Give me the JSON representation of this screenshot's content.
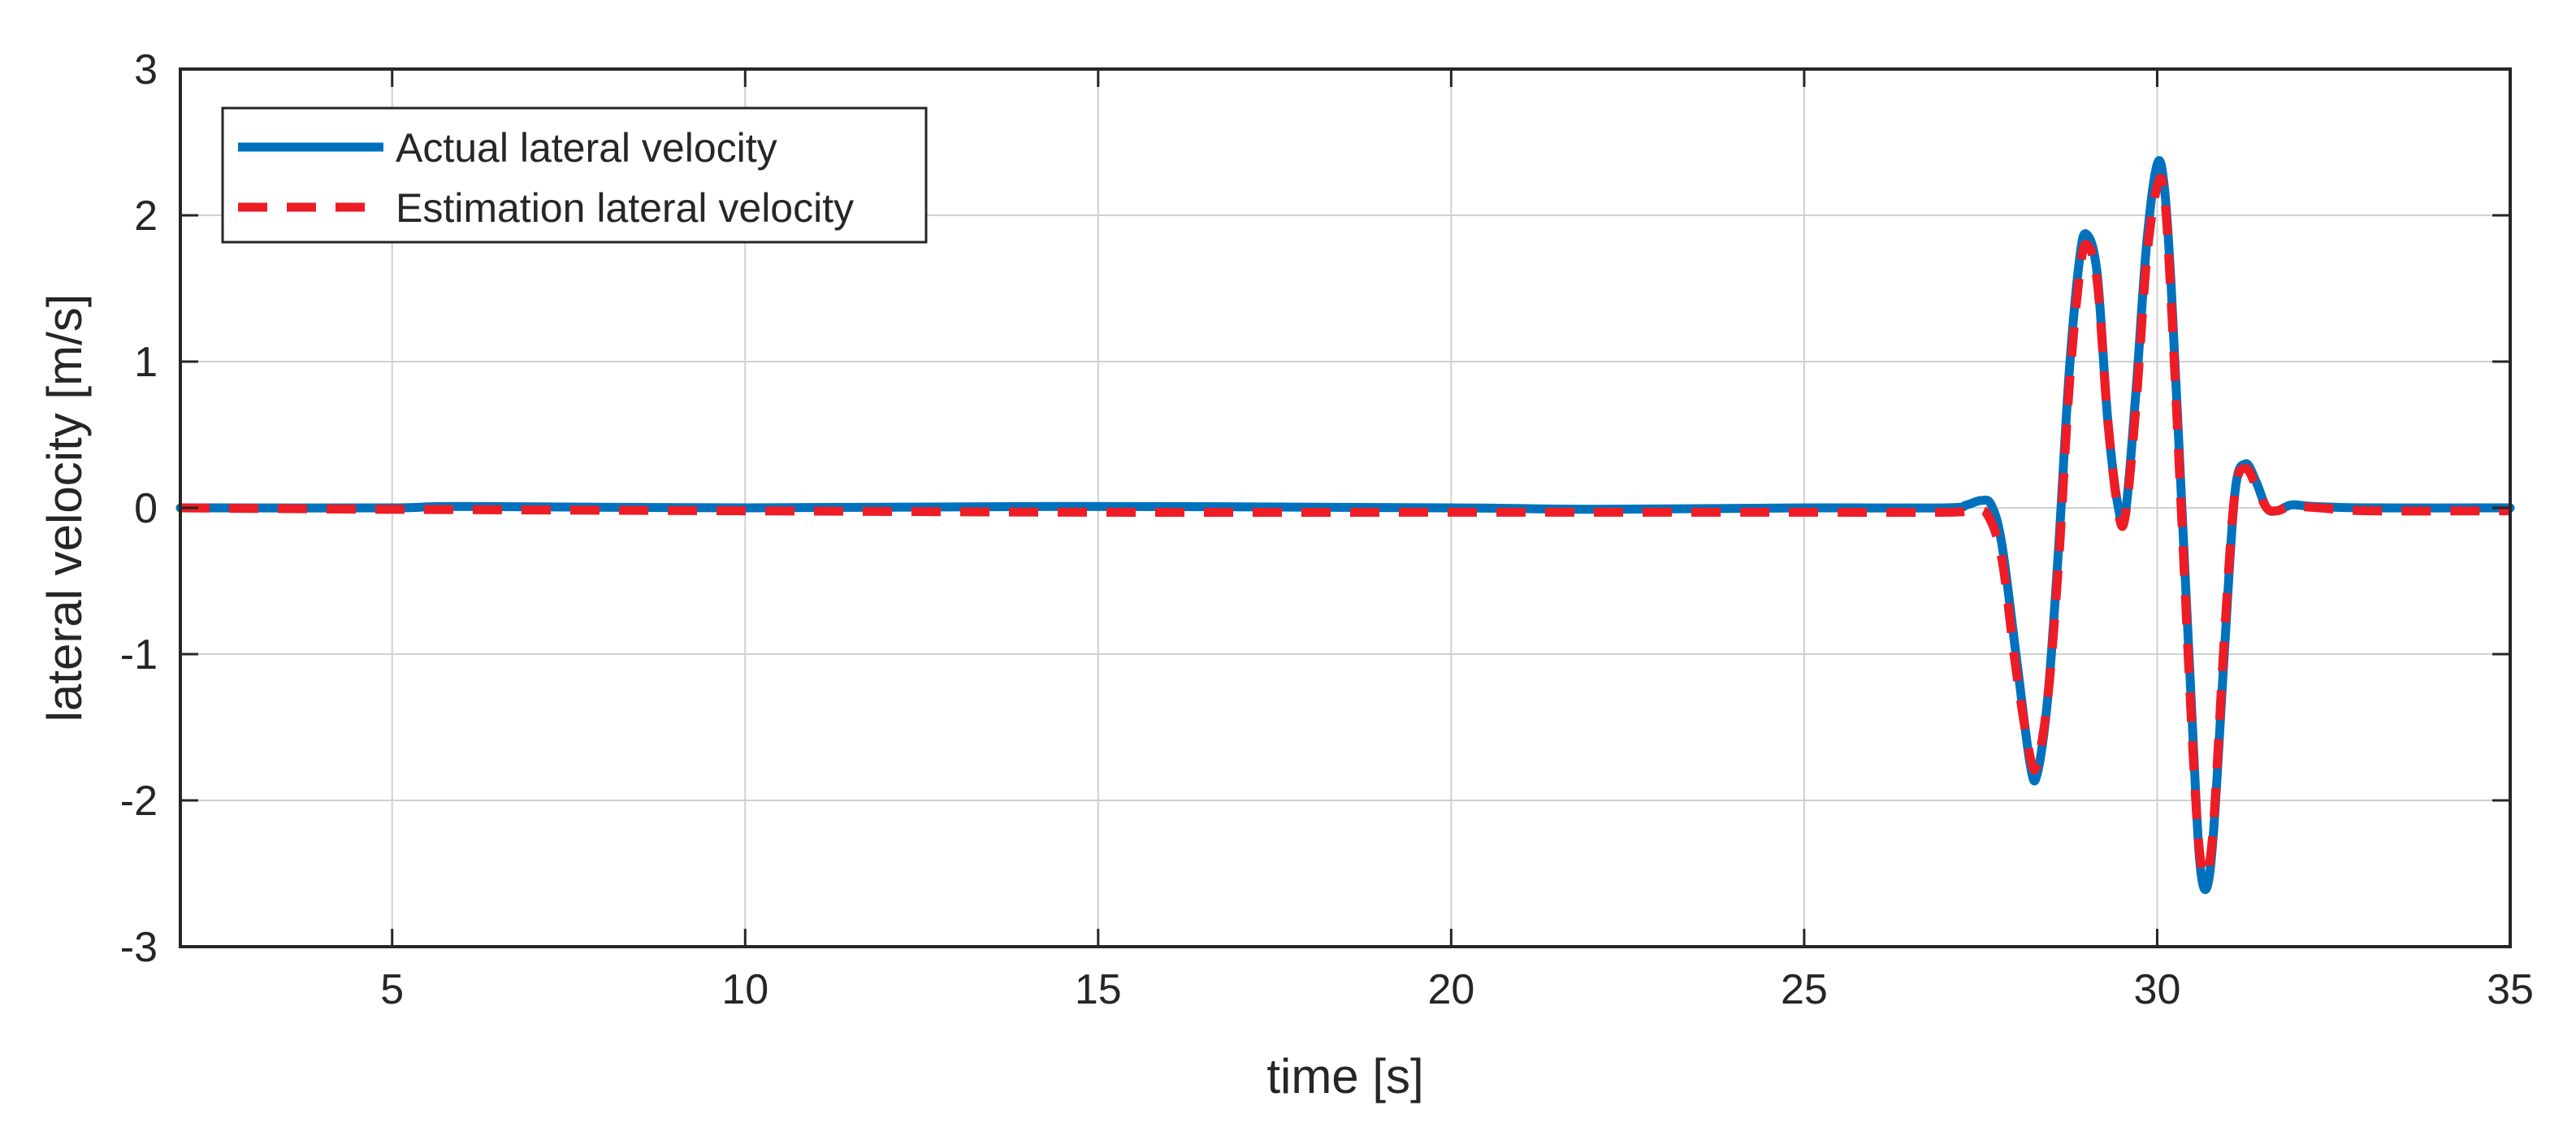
{
  "chart_data": {
    "type": "line",
    "title": "",
    "xlabel": "time [s]",
    "ylabel": "lateral velocity [m/s]",
    "xlim": [
      2,
      35
    ],
    "ylim": [
      -3,
      3
    ],
    "xticks": [
      5,
      10,
      15,
      20,
      25,
      30,
      35
    ],
    "xtick_labels": [
      "5",
      "10",
      "15",
      "20",
      "25",
      "30",
      "35"
    ],
    "yticks": [
      -3,
      -2,
      -1,
      0,
      1,
      2,
      3
    ],
    "ytick_labels": [
      "-3",
      "-2",
      "-1",
      "0",
      "1",
      "2",
      "3"
    ],
    "grid": true,
    "legend_position": "top-left",
    "series": [
      {
        "name": "Actual lateral velocity",
        "color": "#0072BD",
        "style": "solid",
        "points": [
          [
            2,
            0
          ],
          [
            5,
            0
          ],
          [
            6,
            0.01
          ],
          [
            10,
            0
          ],
          [
            14.5,
            0.01
          ],
          [
            20,
            0
          ],
          [
            22,
            -0.01
          ],
          [
            25,
            0
          ],
          [
            27,
            0
          ],
          [
            27.3,
            0.02
          ],
          [
            27.5,
            0.05
          ],
          [
            27.65,
            0.02
          ],
          [
            27.8,
            -0.25
          ],
          [
            28,
            -1.0
          ],
          [
            28.2,
            -1.75
          ],
          [
            28.3,
            -1.82
          ],
          [
            28.45,
            -1.3
          ],
          [
            28.6,
            -0.3
          ],
          [
            28.75,
            0.9
          ],
          [
            28.9,
            1.7
          ],
          [
            29.0,
            1.87
          ],
          [
            29.15,
            1.6
          ],
          [
            29.3,
            0.6
          ],
          [
            29.45,
            0.0
          ],
          [
            29.55,
            -0.04
          ],
          [
            29.7,
            0.8
          ],
          [
            29.85,
            1.8
          ],
          [
            30.0,
            2.35
          ],
          [
            30.1,
            2.2
          ],
          [
            30.2,
            1.5
          ],
          [
            30.35,
            0.0
          ],
          [
            30.5,
            -1.5
          ],
          [
            30.6,
            -2.4
          ],
          [
            30.7,
            -2.6
          ],
          [
            30.8,
            -2.2
          ],
          [
            30.95,
            -1.0
          ],
          [
            31.1,
            0.1
          ],
          [
            31.25,
            0.3
          ],
          [
            31.4,
            0.18
          ],
          [
            31.55,
            0.0
          ],
          [
            31.7,
            -0.02
          ],
          [
            31.9,
            0.02
          ],
          [
            32.2,
            0.01
          ],
          [
            33,
            0
          ],
          [
            35,
            0
          ]
        ]
      },
      {
        "name": "Estimation lateral velocity",
        "color": "#EE1C25",
        "style": "dashed",
        "points": [
          [
            2,
            0
          ],
          [
            5,
            -0.01
          ],
          [
            10,
            -0.02
          ],
          [
            15,
            -0.03
          ],
          [
            20,
            -0.03
          ],
          [
            25,
            -0.03
          ],
          [
            27,
            -0.03
          ],
          [
            27.4,
            -0.02
          ],
          [
            27.6,
            -0.05
          ],
          [
            27.8,
            -0.35
          ],
          [
            28,
            -1.1
          ],
          [
            28.2,
            -1.7
          ],
          [
            28.3,
            -1.75
          ],
          [
            28.45,
            -1.3
          ],
          [
            28.6,
            -0.4
          ],
          [
            28.75,
            0.8
          ],
          [
            28.9,
            1.6
          ],
          [
            29.0,
            1.8
          ],
          [
            29.15,
            1.55
          ],
          [
            29.3,
            0.6
          ],
          [
            29.45,
            -0.03
          ],
          [
            29.55,
            -0.05
          ],
          [
            29.7,
            0.7
          ],
          [
            29.85,
            1.7
          ],
          [
            30.0,
            2.2
          ],
          [
            30.1,
            2.15
          ],
          [
            30.2,
            1.4
          ],
          [
            30.35,
            -0.1
          ],
          [
            30.5,
            -1.6
          ],
          [
            30.6,
            -2.35
          ],
          [
            30.7,
            -2.5
          ],
          [
            30.8,
            -2.15
          ],
          [
            30.95,
            -0.9
          ],
          [
            31.1,
            0.1
          ],
          [
            31.25,
            0.27
          ],
          [
            31.4,
            0.15
          ],
          [
            31.55,
            0.0
          ],
          [
            31.7,
            -0.02
          ],
          [
            31.9,
            0.01
          ],
          [
            32.3,
            0.0
          ],
          [
            33,
            -0.02
          ],
          [
            35,
            -0.02
          ]
        ]
      }
    ]
  }
}
